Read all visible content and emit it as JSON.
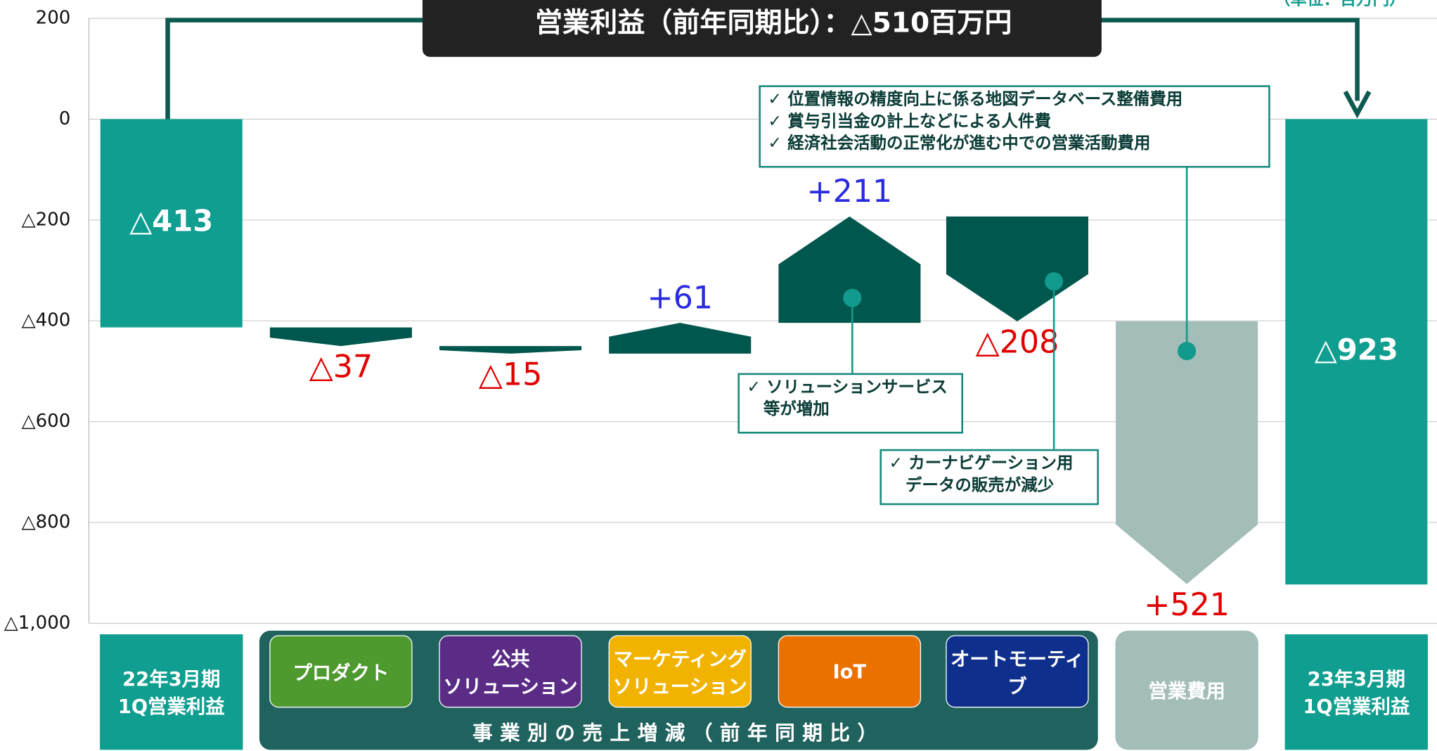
{
  "chart_data": {
    "type": "waterfall",
    "title": "営業利益（前年同期比）：△510百万円",
    "unit_label": "（単位：百万円）",
    "categories": [
      "22年3月期\n1Q営業利益",
      "プロダクト",
      "公共\nソリューション",
      "マーケティング\nソリューション",
      "IoT",
      "オートモーティブ",
      "営業費用",
      "23年3月期\n1Q営業利益"
    ],
    "category_colors": [
      "#0f9e8f",
      "#4f9a2f",
      "#5b2c86",
      "#f2b300",
      "#ea7000",
      "#0f2f8c",
      "#a3bdb9",
      "#0f9e8f"
    ],
    "group_label": "事業別の売上増減（前年同期比）",
    "values": [
      -413,
      -37,
      -15,
      61,
      211,
      -208,
      521,
      -923
    ],
    "value_labels": [
      "△413",
      "△37",
      "△15",
      "+61",
      "+211",
      "△208",
      "+521",
      "△923"
    ],
    "measure": [
      "total",
      "relative",
      "relative",
      "relative",
      "relative",
      "relative",
      "cost",
      "total"
    ],
    "colors": {
      "total": "#0f9e8f",
      "relative": "#00574d",
      "cost": "#a3bdb9",
      "increase_label": "#2a2ae0",
      "decrease_label": "#e00000"
    },
    "ylim": [
      -1000,
      200
    ],
    "yticks": [
      200,
      0,
      {
        "value": -200,
        "label": "△200"
      },
      {
        "value": -400,
        "label": "△400"
      },
      {
        "value": -600,
        "label": "△600"
      },
      {
        "value": -800,
        "label": "△800"
      },
      {
        "value": -1000,
        "label": "△1,000"
      }
    ],
    "grid": true,
    "annotations": [
      {
        "lines": [
          "✓ 位置情報の精度向上に係る地図データベース整備費用",
          "✓ 賞与引当金の計上などによる人件費",
          "✓ 経済社会活動の正常化が進む中での営業活動費用"
        ]
      },
      {
        "lines": [
          "✓ ソリューションサービス",
          "　等が増加"
        ]
      },
      {
        "lines": [
          "✓ カーナビゲーション用",
          "　データの販売が減少"
        ]
      }
    ]
  }
}
